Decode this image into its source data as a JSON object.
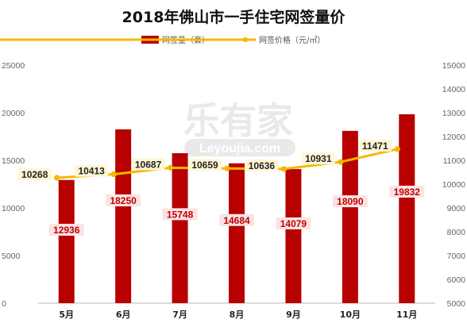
{
  "chart_data": {
    "type": "bar",
    "title": "2018年佛山市一手住宅网签量价",
    "categories": [
      "5月",
      "6月",
      "7月",
      "8月",
      "9月",
      "10月",
      "11月"
    ],
    "series": [
      {
        "name": "网签量（套）",
        "type": "bar",
        "axis": "left",
        "values": [
          12936,
          18250,
          15748,
          14684,
          14079,
          18090,
          19832
        ],
        "color": "#b80000"
      },
      {
        "name": "网签价格（元/㎡）",
        "type": "line",
        "axis": "right",
        "values": [
          10268,
          10413,
          10687,
          10659,
          10636,
          10931,
          11471
        ],
        "color": "#f5b800"
      }
    ],
    "left_axis": {
      "ticks": [
        0,
        5000,
        10000,
        15000,
        20000,
        25000
      ],
      "ylim": [
        0,
        25000
      ]
    },
    "right_axis": {
      "ticks": [
        5000,
        6000,
        7000,
        8000,
        9000,
        10000,
        11000,
        12000,
        13000,
        14000,
        15000
      ],
      "ylim": [
        5000,
        15000
      ]
    },
    "legend_position": "top-center",
    "grid": false
  },
  "watermark": {
    "brand": "乐有家",
    "url": "Leyoujia.com"
  }
}
